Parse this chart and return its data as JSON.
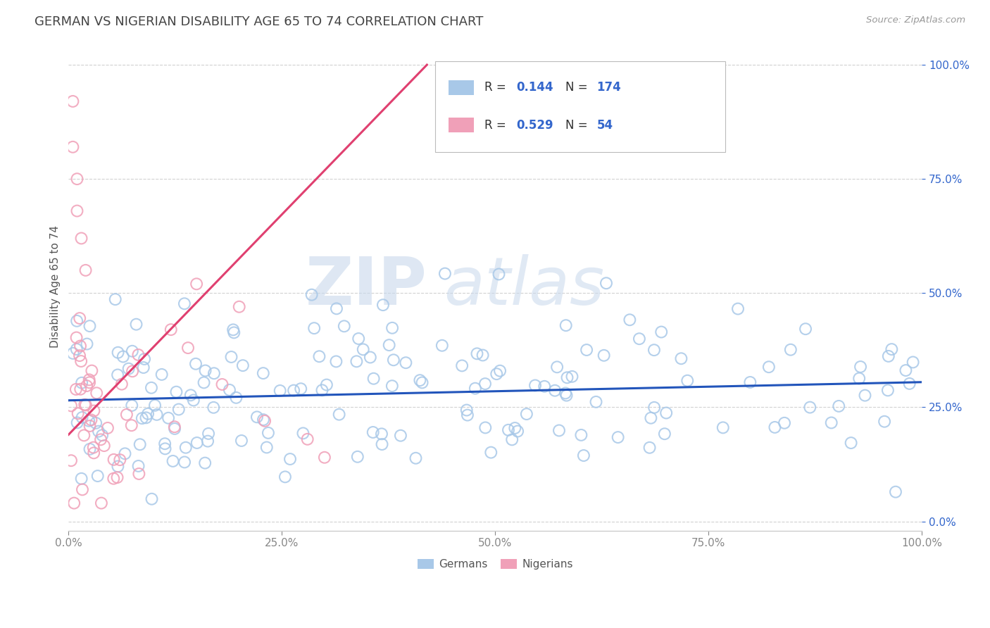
{
  "title": "GERMAN VS NIGERIAN DISABILITY AGE 65 TO 74 CORRELATION CHART",
  "source_text": "Source: ZipAtlas.com",
  "ylabel": "Disability Age 65 to 74",
  "watermark_zip": "ZIP",
  "watermark_atlas": "atlas",
  "xmin": 0.0,
  "xmax": 1.0,
  "ymin": -0.02,
  "ymax": 1.05,
  "german_color": "#a8c8e8",
  "nigerian_color": "#f0a0b8",
  "german_line_color": "#2255bb",
  "nigerian_line_color": "#e04070",
  "background_color": "#ffffff",
  "grid_color": "#cccccc",
  "title_color": "#444444",
  "legend_value_color": "#3366cc",
  "x_ticks": [
    0.0,
    0.25,
    0.5,
    0.75,
    1.0
  ],
  "x_tick_labels": [
    "0.0%",
    "25.0%",
    "50.0%",
    "75.0%",
    "100.0%"
  ],
  "y_ticks": [
    0.0,
    0.25,
    0.5,
    0.75,
    1.0
  ],
  "y_tick_labels": [
    "0.0%",
    "25.0%",
    "50.0%",
    "75.0%",
    "100.0%"
  ],
  "german_R": "0.144",
  "german_N": "174",
  "nigerian_R": "0.529",
  "nigerian_N": "54",
  "nigerian_line_x0": 0.0,
  "nigerian_line_y0": 0.19,
  "nigerian_line_x1": 0.42,
  "nigerian_line_y1": 1.0,
  "german_line_x0": 0.0,
  "german_line_y0": 0.265,
  "german_line_x1": 1.0,
  "german_line_y1": 0.305
}
